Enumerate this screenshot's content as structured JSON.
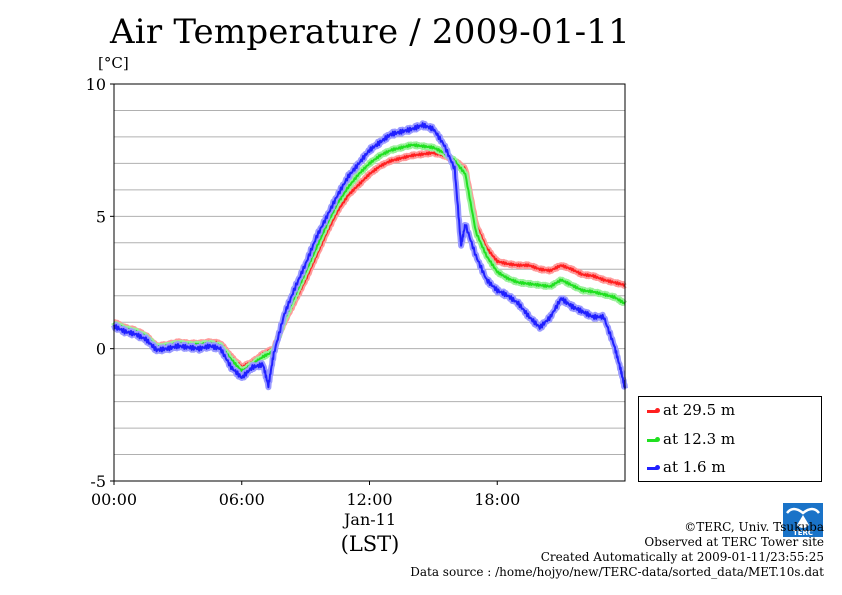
{
  "page": {
    "title": "Air Temperature / 2009-01-11",
    "unit_label": "[°C]",
    "date_label": "Jan-11",
    "tz_label": "(LST)"
  },
  "legend": [
    {
      "label": "at 29.5 m",
      "color": "#ff2020"
    },
    {
      "label": "at 12.3 m",
      "color": "#20e020"
    },
    {
      "label": "at 1.6 m",
      "color": "#2020ff"
    }
  ],
  "credits": {
    "line1": "©TERC, Univ. Tsukuba",
    "line2": "Observed at TERC Tower site",
    "line3": "Created Automatically at 2009-01-11/23:55:25",
    "line4": "Data source : /home/hojyo/new/TERC-data/sorted_data/MET.10s.dat",
    "logo_text": "TERC"
  },
  "chart_data": {
    "type": "line",
    "title": "Air Temperature / 2009-01-11",
    "xlabel": "(LST)",
    "ylabel": "[°C]",
    "xlim": [
      0,
      24
    ],
    "ylim": [
      -5,
      10
    ],
    "x_ticks": [
      0,
      6,
      12,
      18
    ],
    "x_tick_labels": [
      "00:00",
      "06:00",
      "12:00",
      "18:00"
    ],
    "y_ticks": [
      -5,
      0,
      5,
      10
    ],
    "y_tick_labels": [
      "-5",
      "0",
      "5",
      "10"
    ],
    "grid": true,
    "legend_position": "right-bottom",
    "series": [
      {
        "name": "at 29.5 m",
        "color": "#ff2020",
        "x": [
          0,
          0.5,
          1,
          1.5,
          2,
          2.5,
          3,
          3.5,
          4,
          4.5,
          5,
          5.5,
          6,
          6.5,
          7,
          7.5,
          8,
          8.5,
          9,
          9.5,
          10,
          10.5,
          11,
          11.5,
          12,
          12.5,
          13,
          13.5,
          14,
          14.5,
          15,
          15.5,
          16,
          16.5,
          17,
          17.5,
          18,
          18.5,
          19,
          19.5,
          20,
          20.5,
          21,
          21.5,
          22,
          22.5,
          23,
          23.5,
          24
        ],
        "values": [
          1.0,
          0.8,
          0.7,
          0.5,
          0.1,
          0.15,
          0.25,
          0.2,
          0.2,
          0.25,
          0.2,
          -0.3,
          -0.7,
          -0.5,
          -0.2,
          0.0,
          1.0,
          1.8,
          2.6,
          3.5,
          4.4,
          5.2,
          5.8,
          6.2,
          6.6,
          6.9,
          7.1,
          7.2,
          7.3,
          7.35,
          7.4,
          7.3,
          7.1,
          6.8,
          4.7,
          3.8,
          3.3,
          3.2,
          3.15,
          3.15,
          3.0,
          2.95,
          3.15,
          3.0,
          2.8,
          2.75,
          2.6,
          2.5,
          2.4
        ]
      },
      {
        "name": "at 12.3 m",
        "color": "#20e020",
        "x": [
          0,
          0.5,
          1,
          1.5,
          2,
          2.5,
          3,
          3.5,
          4,
          4.5,
          5,
          5.5,
          6,
          6.5,
          7,
          7.5,
          8,
          8.5,
          9,
          9.5,
          10,
          10.5,
          11,
          11.5,
          12,
          12.5,
          13,
          13.5,
          14,
          14.5,
          15,
          15.5,
          16,
          16.5,
          17,
          17.5,
          18,
          18.5,
          19,
          19.5,
          20,
          20.5,
          21,
          21.5,
          22,
          22.5,
          23,
          23.5,
          24
        ],
        "values": [
          0.95,
          0.75,
          0.65,
          0.45,
          0.05,
          0.1,
          0.2,
          0.15,
          0.15,
          0.2,
          0.1,
          -0.4,
          -0.85,
          -0.6,
          -0.3,
          -0.1,
          1.1,
          2.0,
          2.9,
          3.8,
          4.7,
          5.5,
          6.1,
          6.6,
          7.0,
          7.3,
          7.5,
          7.6,
          7.7,
          7.65,
          7.6,
          7.4,
          7.1,
          6.6,
          4.4,
          3.5,
          2.9,
          2.65,
          2.5,
          2.45,
          2.4,
          2.35,
          2.6,
          2.4,
          2.2,
          2.15,
          2.05,
          1.95,
          1.7
        ]
      },
      {
        "name": "at 1.6 m",
        "color": "#2020ff",
        "x": [
          0,
          0.5,
          1,
          1.5,
          2,
          2.5,
          3,
          3.5,
          4,
          4.5,
          5,
          5.5,
          6,
          6.5,
          7,
          7.25,
          7.5,
          8,
          8.5,
          9,
          9.5,
          10,
          10.5,
          11,
          11.5,
          12,
          12.5,
          13,
          13.5,
          14,
          14.5,
          15,
          15.5,
          16,
          16.3,
          16.5,
          17,
          17.5,
          18,
          18.5,
          19,
          19.5,
          20,
          20.5,
          21,
          21.5,
          22,
          22.5,
          23,
          23.5,
          23.8,
          24
        ],
        "values": [
          0.85,
          0.65,
          0.55,
          0.35,
          -0.05,
          0.0,
          0.1,
          0.05,
          0.0,
          0.1,
          0.0,
          -0.7,
          -1.1,
          -0.7,
          -0.6,
          -1.4,
          -0.2,
          1.3,
          2.3,
          3.2,
          4.2,
          5.0,
          5.8,
          6.5,
          7.0,
          7.5,
          7.8,
          8.1,
          8.2,
          8.3,
          8.45,
          8.3,
          7.7,
          6.8,
          3.9,
          4.7,
          3.5,
          2.6,
          2.2,
          2.0,
          1.7,
          1.2,
          0.8,
          1.2,
          1.9,
          1.6,
          1.4,
          1.2,
          1.2,
          0.1,
          -0.8,
          -1.5
        ]
      }
    ]
  }
}
